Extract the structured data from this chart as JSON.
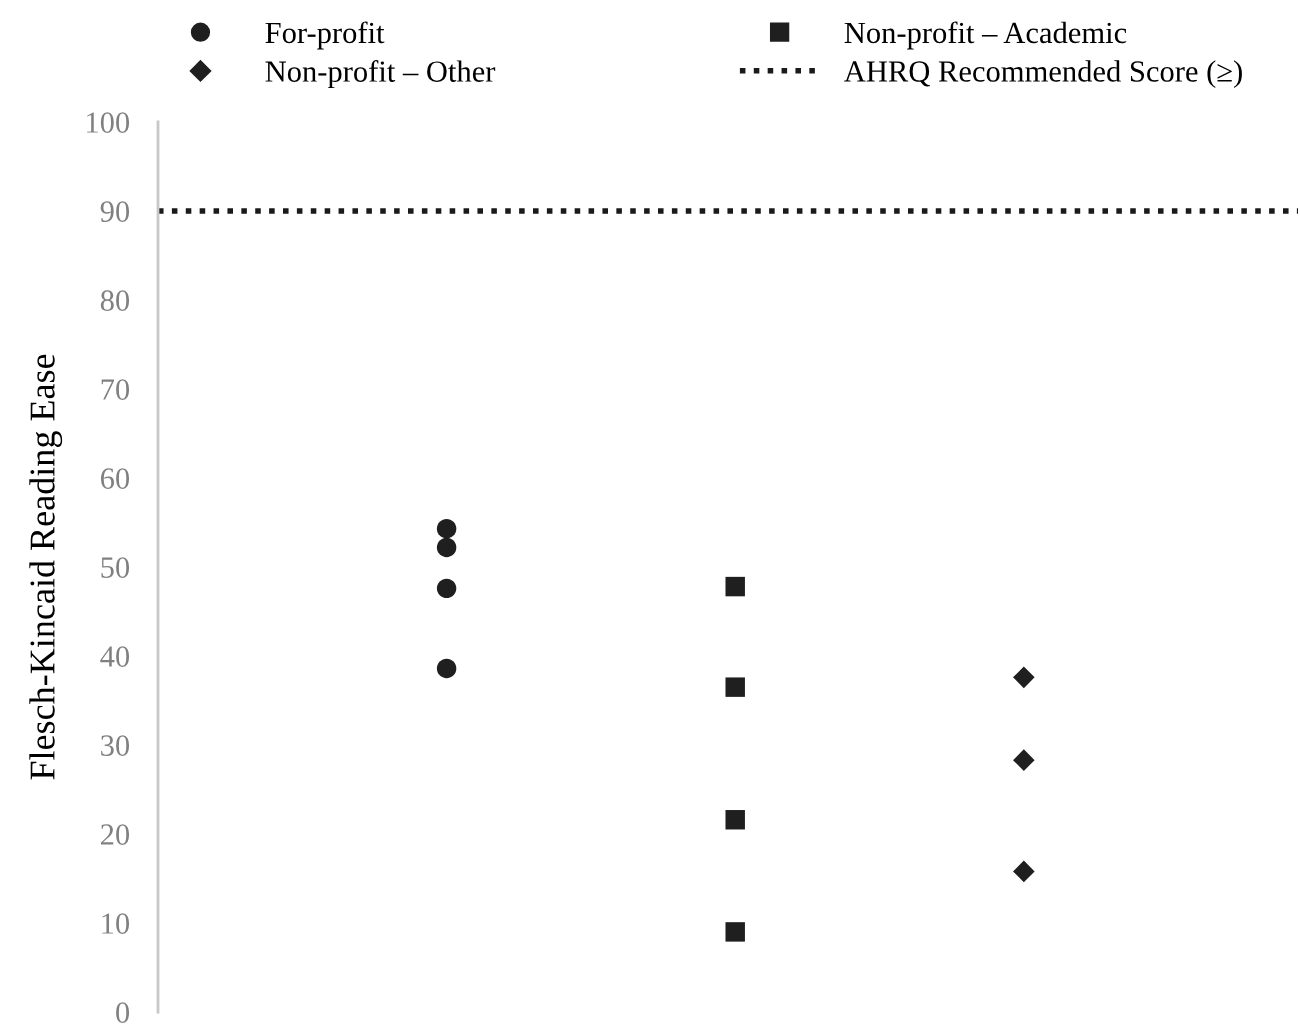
{
  "chart_data": {
    "type": "scatter",
    "ylabel": "Flesch-Kincaid Reading Ease",
    "categories": [
      null,
      null,
      null
    ],
    "ylim": [
      0,
      100
    ],
    "yticks": [
      0,
      10,
      20,
      30,
      40,
      50,
      60,
      70,
      80,
      90,
      100
    ],
    "tick_labels": "y",
    "legend": "top",
    "series": [
      {
        "name": "For-profit",
        "color": "#1f1f1f",
        "marker": "circle",
        "values": [
          54.3,
          null,
          null
        ]
      },
      {
        "color": "#1f1f1f",
        "marker": "circle",
        "values": [
          52.2,
          null,
          null
        ]
      },
      {
        "color": "#1f1f1f",
        "marker": "circle",
        "values": [
          47.6,
          null,
          null
        ]
      },
      {
        "color": "#1f1f1f",
        "marker": "circle",
        "values": [
          38.6,
          null,
          null
        ]
      },
      {
        "name": "Non-profit – Academic",
        "color": "#1f1f1f",
        "marker": "square",
        "values": [
          null,
          47.8,
          null
        ]
      },
      {
        "color": "#1f1f1f",
        "marker": "square",
        "values": [
          null,
          36.5,
          null
        ]
      },
      {
        "color": "#1f1f1f",
        "marker": "square",
        "values": [
          null,
          21.6,
          null
        ]
      },
      {
        "color": "#1f1f1f",
        "marker": "square",
        "values": [
          null,
          9.0,
          null
        ]
      },
      {
        "name": "Non-profit – Other",
        "color": "#1f1f1f",
        "marker": "diamond",
        "values": [
          null,
          null,
          37.6
        ]
      },
      {
        "color": "#1f1f1f",
        "marker": "diamond",
        "values": [
          null,
          null,
          28.3
        ]
      },
      {
        "color": "#1f1f1f",
        "marker": "diamond",
        "values": [
          null,
          null,
          15.8
        ]
      }
    ],
    "ref_lines": [
      {
        "axis": "y",
        "value": 90,
        "label": "AHRQ Recommended Score (≥)",
        "color": "#1a1a1a",
        "line_style": "dotted"
      }
    ]
  }
}
